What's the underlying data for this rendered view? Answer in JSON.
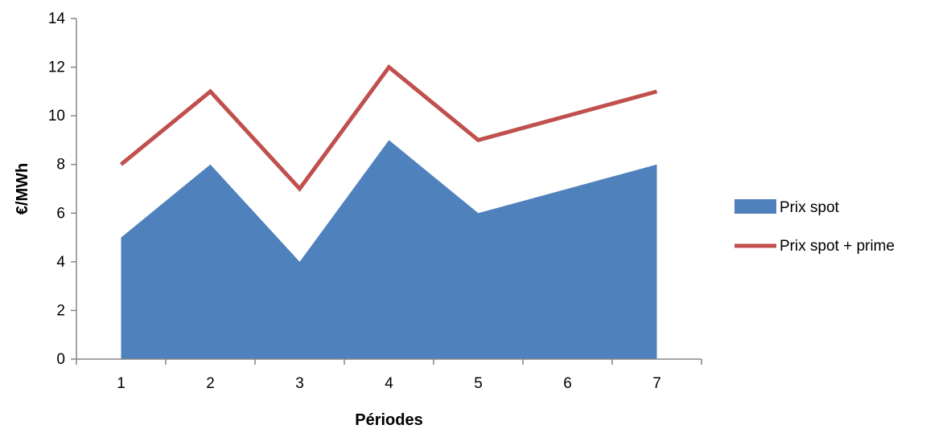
{
  "chart_data": {
    "type": "area",
    "x": [
      "1",
      "2",
      "3",
      "4",
      "5",
      "6",
      "7"
    ],
    "series": [
      {
        "name": "Prix spot",
        "type": "area",
        "color": "#4F81BD",
        "values": [
          5,
          8,
          4,
          9,
          6,
          7,
          8
        ]
      },
      {
        "name": "Prix spot + prime",
        "type": "line",
        "color": "#C0504D",
        "values": [
          8,
          11,
          7,
          12,
          9,
          10,
          11
        ]
      }
    ],
    "xlabel": "Périodes",
    "ylabel": "€/MWh",
    "ylim": [
      0,
      14
    ],
    "yticks": [
      "0",
      "2",
      "4",
      "6",
      "8",
      "10",
      "12",
      "14"
    ],
    "grid": false,
    "legend_position": "right"
  }
}
